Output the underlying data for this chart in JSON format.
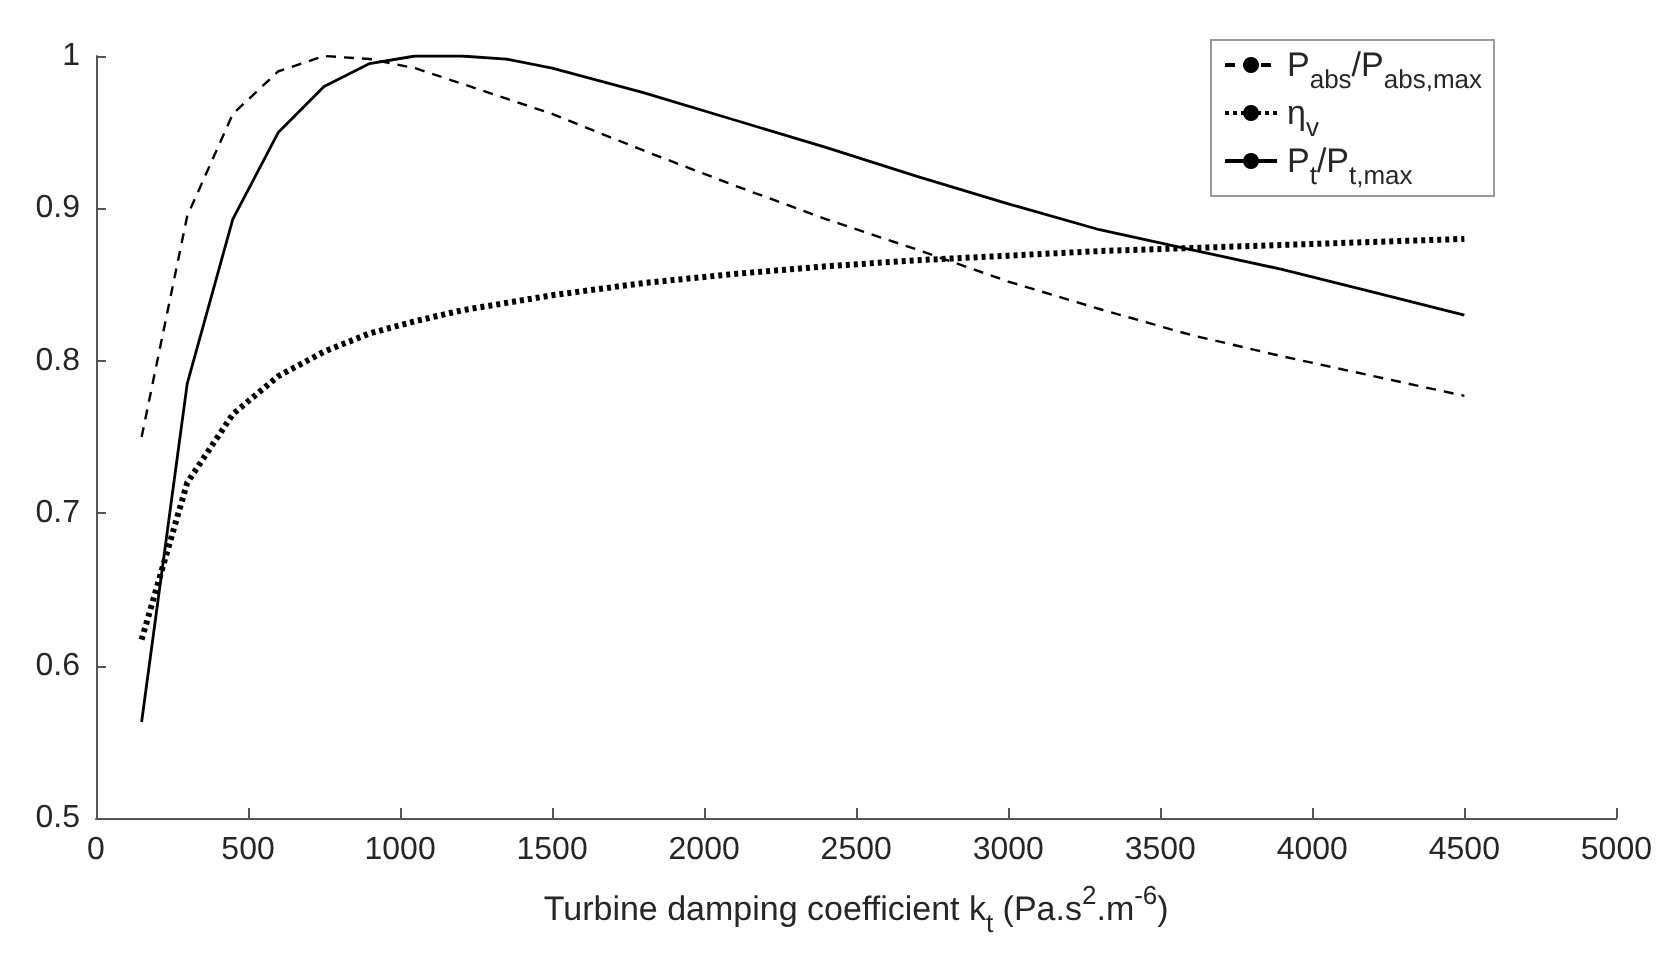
{
  "chart_data": {
    "type": "line",
    "xlabel": "Turbine damping coefficient k$_{t}$ (Pa.s$^{2}$.m$^{-6}$)",
    "x": [
      150,
      300,
      450,
      600,
      750,
      900,
      1050,
      1200,
      1350,
      1500,
      1800,
      2100,
      2400,
      2700,
      3000,
      3300,
      3600,
      3900,
      4200,
      4500
    ],
    "series": [
      {
        "name": "P$_{abs}$/P$_{abs,max}$",
        "color": "#000000",
        "line_style": "dashed",
        "values": [
          0.75,
          0.895,
          0.962,
          0.99,
          1.0,
          0.998,
          0.992,
          0.982,
          0.972,
          0.962,
          0.938,
          0.915,
          0.893,
          0.873,
          0.852,
          0.834,
          0.817,
          0.803,
          0.79,
          0.777
        ]
      },
      {
        "name": "η$_{v}$",
        "color": "#000000",
        "line_style": "dotted",
        "values": [
          0.617,
          0.72,
          0.765,
          0.79,
          0.806,
          0.818,
          0.826,
          0.833,
          0.838,
          0.843,
          0.851,
          0.857,
          0.862,
          0.866,
          0.869,
          0.872,
          0.874,
          0.876,
          0.878,
          0.88
        ]
      },
      {
        "name": "P$_{t}$/P$_{t,max}$",
        "color": "#000000",
        "line_style": "solid",
        "values": [
          0.563,
          0.785,
          0.893,
          0.95,
          0.98,
          0.995,
          1.0,
          1.0,
          0.998,
          0.992,
          0.976,
          0.958,
          0.94,
          0.921,
          0.903,
          0.886,
          0.873,
          0.86,
          0.845,
          0.83
        ]
      }
    ],
    "xlim": [
      0,
      5000
    ],
    "xticks": [
      0,
      500,
      1000,
      1500,
      2000,
      2500,
      3000,
      3500,
      4000,
      4500,
      5000
    ],
    "ylim": [
      0.5,
      1
    ],
    "yticks": [
      0.5,
      0.6,
      0.7,
      0.8,
      0.9,
      1
    ],
    "grid": false,
    "legend": "top right",
    "marker": "none"
  }
}
